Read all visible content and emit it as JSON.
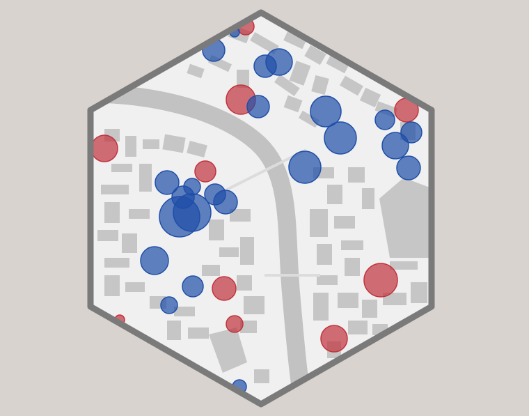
{
  "colors": {
    "background": "#d8d3ce",
    "frame": "#7a7a7a",
    "land": "#f0f0f0",
    "buildings": "#c6c6c6",
    "river": "#c2c2c2",
    "marker_blue": "#1f4fa8",
    "marker_red": "#c0333d"
  },
  "legend": [],
  "markers": [
    {
      "id": "m1",
      "category": "blue"
    },
    {
      "id": "m2",
      "category": "red"
    },
    {
      "id": "m3",
      "category": "blue"
    },
    {
      "id": "m4",
      "category": "blue"
    },
    {
      "id": "m5",
      "category": "blue"
    },
    {
      "id": "m6",
      "category": "red"
    },
    {
      "id": "m7",
      "category": "blue"
    },
    {
      "id": "m8",
      "category": "blue"
    },
    {
      "id": "m9",
      "category": "blue"
    },
    {
      "id": "m10",
      "category": "blue"
    },
    {
      "id": "m11",
      "category": "red"
    },
    {
      "id": "m12",
      "category": "blue"
    },
    {
      "id": "m13",
      "category": "blue"
    },
    {
      "id": "m14",
      "category": "blue"
    },
    {
      "id": "m15",
      "category": "red"
    },
    {
      "id": "m16",
      "category": "blue"
    },
    {
      "id": "m17",
      "category": "blue"
    },
    {
      "id": "m18",
      "category": "blue"
    },
    {
      "id": "m19",
      "category": "blue"
    },
    {
      "id": "m20",
      "category": "blue"
    },
    {
      "id": "m21",
      "category": "blue"
    },
    {
      "id": "m22",
      "category": "blue"
    },
    {
      "id": "m23",
      "category": "red"
    },
    {
      "id": "m24",
      "category": "blue"
    },
    {
      "id": "m25",
      "category": "blue"
    },
    {
      "id": "m26",
      "category": "red"
    },
    {
      "id": "m27",
      "category": "red"
    },
    {
      "id": "m28",
      "category": "red"
    },
    {
      "id": "m29",
      "category": "red"
    },
    {
      "id": "m30",
      "category": "blue"
    },
    {
      "id": "m31",
      "category": "blue"
    },
    {
      "id": "m32",
      "category": "red"
    },
    {
      "id": "m33",
      "category": "blue"
    }
  ]
}
